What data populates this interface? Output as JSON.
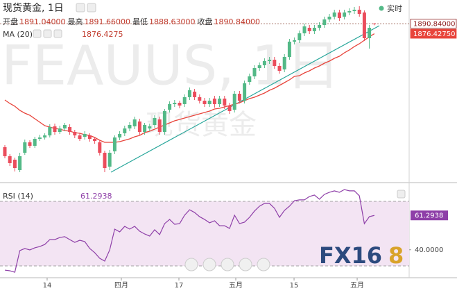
{
  "chart_data": [
    {
      "type": "candlestick",
      "title": "现货黄金, 1日",
      "watermark_symbol": "FEAUUS, 1日",
      "watermark_name": "现货黄金",
      "status": "实时",
      "ohlc_legend": [
        {
          "label": "开盘",
          "value": "1891.04000"
        },
        {
          "label": "最高",
          "value": "1891.66000"
        },
        {
          "label": "最低",
          "value": "1888.63000"
        },
        {
          "label": "收盘",
          "value": "1890.84000"
        }
      ],
      "up_color": "#53b987",
      "down_color": "#eb4d5c",
      "xlim": [
        -0.97,
        80.97
      ],
      "ylim": [
        1663,
        1925
      ],
      "xticks": [
        {
          "value": 8.47,
          "label": "14"
        },
        {
          "value": 23.33,
          "label": "四月"
        },
        {
          "value": 34.86,
          "label": "17"
        },
        {
          "value": 46.25,
          "label": "五月"
        },
        {
          "value": 57.92,
          "label": "15"
        },
        {
          "value": 70.56,
          "label": "五月"
        }
      ],
      "ohlc": [
        [
          1713,
          1716,
          1697,
          1700
        ],
        [
          1700,
          1703,
          1686,
          1690
        ],
        [
          1695,
          1698,
          1678,
          1683
        ],
        [
          1680,
          1705,
          1677,
          1700
        ],
        [
          1705,
          1724,
          1702,
          1720
        ],
        [
          1720,
          1723,
          1712,
          1715
        ],
        [
          1715,
          1728,
          1712,
          1725
        ],
        [
          1725,
          1731,
          1722,
          1727
        ],
        [
          1727,
          1733,
          1724,
          1730
        ],
        [
          1730,
          1746,
          1727,
          1742
        ],
        [
          1743,
          1747,
          1731,
          1735
        ],
        [
          1735,
          1744,
          1732,
          1740
        ],
        [
          1740,
          1748,
          1736,
          1745
        ],
        [
          1742,
          1746,
          1731,
          1735
        ],
        [
          1735,
          1738,
          1726,
          1730
        ],
        [
          1730,
          1734,
          1722,
          1725
        ],
        [
          1728,
          1736,
          1724,
          1732
        ],
        [
          1730,
          1733,
          1721,
          1725
        ],
        [
          1725,
          1728,
          1718,
          1722
        ],
        [
          1720,
          1723,
          1701,
          1705
        ],
        [
          1705,
          1708,
          1677,
          1683
        ],
        [
          1685,
          1709,
          1680,
          1705
        ],
        [
          1707,
          1730,
          1703,
          1727
        ],
        [
          1727,
          1736,
          1723,
          1732
        ],
        [
          1733,
          1744,
          1729,
          1740
        ],
        [
          1740,
          1749,
          1736,
          1745
        ],
        [
          1743,
          1757,
          1739,
          1753
        ],
        [
          1750,
          1754,
          1731,
          1735
        ],
        [
          1735,
          1748,
          1731,
          1745
        ],
        [
          1740,
          1747,
          1736,
          1743
        ],
        [
          1745,
          1759,
          1741,
          1755
        ],
        [
          1753,
          1757,
          1731,
          1735
        ],
        [
          1735,
          1768,
          1731,
          1765
        ],
        [
          1767,
          1779,
          1763,
          1775
        ],
        [
          1775,
          1781,
          1771,
          1777
        ],
        [
          1777,
          1780,
          1769,
          1773
        ],
        [
          1775,
          1789,
          1771,
          1785
        ],
        [
          1785,
          1799,
          1781,
          1795
        ],
        [
          1793,
          1797,
          1781,
          1785
        ],
        [
          1785,
          1789,
          1776,
          1780
        ],
        [
          1780,
          1784,
          1771,
          1775
        ],
        [
          1775,
          1784,
          1771,
          1780
        ],
        [
          1783,
          1787,
          1770,
          1775
        ],
        [
          1775,
          1787,
          1771,
          1783
        ],
        [
          1783,
          1787,
          1768,
          1773
        ],
        [
          1773,
          1777,
          1761,
          1765
        ],
        [
          1767,
          1794,
          1763,
          1790
        ],
        [
          1790,
          1794,
          1776,
          1780
        ],
        [
          1780,
          1809,
          1776,
          1805
        ],
        [
          1807,
          1819,
          1803,
          1815
        ],
        [
          1815,
          1831,
          1811,
          1827
        ],
        [
          1827,
          1835,
          1823,
          1831
        ],
        [
          1831,
          1841,
          1827,
          1837
        ],
        [
          1837,
          1843,
          1833,
          1839
        ],
        [
          1839,
          1843,
          1826,
          1830
        ],
        [
          1830,
          1834,
          1819,
          1823
        ],
        [
          1825,
          1847,
          1821,
          1843
        ],
        [
          1843,
          1869,
          1839,
          1865
        ],
        [
          1865,
          1871,
          1861,
          1867
        ],
        [
          1867,
          1881,
          1863,
          1877
        ],
        [
          1877,
          1891,
          1873,
          1887
        ],
        [
          1885,
          1889,
          1876,
          1880
        ],
        [
          1880,
          1889,
          1876,
          1885
        ],
        [
          1885,
          1893,
          1881,
          1889
        ],
        [
          1889,
          1901,
          1885,
          1897
        ],
        [
          1897,
          1905,
          1893,
          1901
        ],
        [
          1901,
          1911,
          1897,
          1907
        ],
        [
          1907,
          1911,
          1895,
          1899
        ],
        [
          1901,
          1911,
          1897,
          1907
        ],
        [
          1907,
          1913,
          1903,
          1909
        ],
        [
          1909,
          1915,
          1905,
          1911
        ],
        [
          1911,
          1916,
          1901,
          1905
        ],
        [
          1907,
          1910,
          1866,
          1870
        ],
        [
          1870,
          1889,
          1855,
          1885
        ],
        [
          1891.04,
          1891.66,
          1888.63,
          1890.84
        ]
      ],
      "ma": {
        "name": "MA (20)",
        "color": "#e8453c",
        "value_label": "1876.4275",
        "values": [
          1781,
          1776,
          1772,
          1766,
          1762,
          1759,
          1754,
          1749,
          1744,
          1742,
          1740,
          1739,
          1737,
          1736,
          1734,
          1733,
          1731,
          1730,
          1727,
          1723,
          1720,
          1720,
          1720,
          1721,
          1723,
          1725,
          1728,
          1730,
          1734,
          1736,
          1739,
          1742,
          1745,
          1748,
          1751,
          1753,
          1755,
          1757,
          1759,
          1761,
          1763,
          1765,
          1768,
          1769,
          1771,
          1773,
          1775,
          1777,
          1780,
          1783,
          1785,
          1788,
          1791,
          1795,
          1798,
          1802,
          1806,
          1810,
          1815,
          1816,
          1820,
          1823,
          1827,
          1830,
          1834,
          1837,
          1841,
          1844,
          1849,
          1853,
          1858,
          1862,
          1867,
          1872,
          1876.4275
        ]
      },
      "trendline": {
        "x": [
          21.25,
          75
        ],
        "values": [
          1677,
          1888
        ],
        "color": "#26a69a"
      },
      "price_labels": [
        {
          "value": 1890.84,
          "label": "1890.84000",
          "color": "#8b1a1a"
        },
        {
          "value": 1876.4275,
          "label": "1876.42750",
          "color": "#e8453c"
        }
      ]
    },
    {
      "type": "line",
      "name": "RSI (14)",
      "color": "#8e3fa8",
      "band_color": "#f3e4f3",
      "value_label": "61.2938",
      "ylim": [
        22.69,
        80.75
      ],
      "yticks": [
        {
          "value": 40,
          "label": "40.0000"
        }
      ],
      "bands": [
        30,
        70
      ],
      "values": [
        27.4,
        27.0,
        26.1,
        39.5,
        40.8,
        39.9,
        41.2,
        42.0,
        43.3,
        46.3,
        46.3,
        47.6,
        48.1,
        46.3,
        44.6,
        45.9,
        45.1,
        40.8,
        38.2,
        34.7,
        33.0,
        39.9,
        52.8,
        51.1,
        54.5,
        52.8,
        54.5,
        51.5,
        49.8,
        48.5,
        52.4,
        49.4,
        56.2,
        58.8,
        55.8,
        56.2,
        61.4,
        64.8,
        63.1,
        60.5,
        58.8,
        56.7,
        58.0,
        54.9,
        54.9,
        53.2,
        61.4,
        56.2,
        57.1,
        60.1,
        64.0,
        67.0,
        68.7,
        68.7,
        65.7,
        60.1,
        64.4,
        67.0,
        70.4,
        70.9,
        70.9,
        73.0,
        73.9,
        71.3,
        74.3,
        75.6,
        76.5,
        75.6,
        77.3,
        76.5,
        76.5,
        73.4,
        56.2,
        60.5,
        61.2938
      ]
    }
  ],
  "logo": {
    "left": "FX16",
    "right": "8"
  }
}
